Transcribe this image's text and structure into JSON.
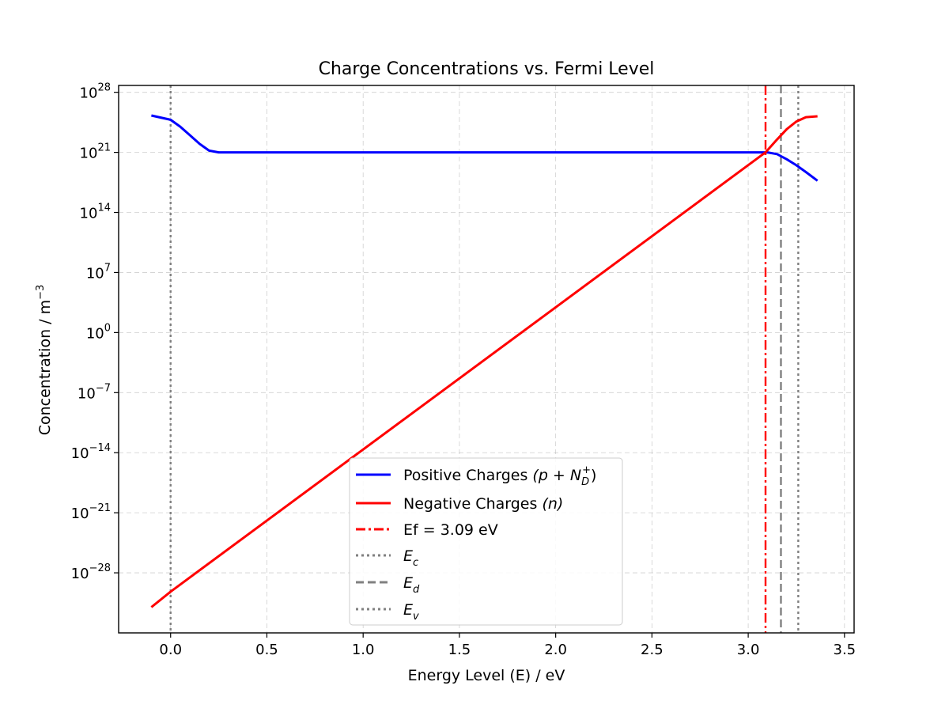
{
  "chart_data": {
    "type": "line",
    "title": "Charge Concentrations vs. Fermi Level",
    "xlabel": "Energy Level (E) / eV",
    "ylabel": "Concentration / m",
    "ylabel_superscript": "−3",
    "xlim": [
      -0.27,
      3.55
    ],
    "ylim_log10": [
      -35,
      28.8
    ],
    "yscale": "log",
    "grid": true,
    "legend_position": "lower-center",
    "x_ticks": [
      "0.0",
      "0.5",
      "1.0",
      "1.5",
      "2.0",
      "2.5",
      "3.0",
      "3.5"
    ],
    "x_tick_values": [
      0.0,
      0.5,
      1.0,
      1.5,
      2.0,
      2.5,
      3.0,
      3.5
    ],
    "y_ticks": [
      {
        "base": "10",
        "exp": "28",
        "value_log10": 28
      },
      {
        "base": "10",
        "exp": "21",
        "value_log10": 21
      },
      {
        "base": "10",
        "exp": "14",
        "value_log10": 14
      },
      {
        "base": "10",
        "exp": "7",
        "value_log10": 7
      },
      {
        "base": "10",
        "exp": "0",
        "value_log10": 0
      },
      {
        "base": "10",
        "exp": "−7",
        "value_log10": -7
      },
      {
        "base": "10",
        "exp": "−14",
        "value_log10": -14
      },
      {
        "base": "10",
        "exp": "−21",
        "value_log10": -21
      },
      {
        "base": "10",
        "exp": "−28",
        "value_log10": -28
      }
    ],
    "series": [
      {
        "name": "Positive Charges",
        "name_math": "(p + N_D^+)",
        "color": "#0000ff",
        "x": [
          -0.1,
          0.0,
          0.05,
          0.1,
          0.15,
          0.2,
          0.25,
          0.3,
          0.5,
          1.0,
          1.5,
          2.0,
          2.5,
          3.0,
          3.1,
          3.15,
          3.2,
          3.25,
          3.3,
          3.36
        ],
        "y_log10": [
          25.3,
          24.8,
          24.0,
          23.0,
          22.0,
          21.2,
          21.0,
          21.0,
          21.0,
          21.0,
          21.0,
          21.0,
          21.0,
          21.0,
          21.0,
          20.8,
          20.2,
          19.5,
          18.7,
          17.7
        ]
      },
      {
        "name": "Negative Charges",
        "name_math": "(n)",
        "color": "#ff0000",
        "x": [
          -0.1,
          0.0,
          3.09,
          3.15,
          3.2,
          3.25,
          3.3,
          3.36
        ],
        "y_log10": [
          -32.0,
          -30.2,
          21.0,
          22.5,
          23.7,
          24.6,
          25.1,
          25.2
        ]
      }
    ],
    "vlines": [
      {
        "name": "Ef = 3.09 eV",
        "x": 3.09,
        "color": "#ff0000",
        "style": "dashdot"
      },
      {
        "name": "E",
        "sub": "c",
        "x": 0.0,
        "color": "#808080",
        "style": "dotted"
      },
      {
        "name": "E",
        "sub": "d",
        "x": 3.17,
        "color": "#808080",
        "style": "dashed"
      },
      {
        "name": "E",
        "sub": "v",
        "x": 3.26,
        "color": "#808080",
        "style": "dotted"
      }
    ],
    "legend": [
      {
        "label": "Positive Charges ",
        "math": "(p + N",
        "sub": "D",
        "sup": "+",
        "close": ")",
        "color": "#0000ff",
        "style": "solid"
      },
      {
        "label": "Negative Charges ",
        "math": "(n)",
        "color": "#ff0000",
        "style": "solid"
      },
      {
        "label": "Ef = 3.09 eV",
        "color": "#ff0000",
        "style": "dashdot"
      },
      {
        "label": "E",
        "sub": "c",
        "color": "#808080",
        "style": "dotted"
      },
      {
        "label": "E",
        "sub": "d",
        "color": "#808080",
        "style": "dashed"
      },
      {
        "label": "E",
        "sub": "v",
        "color": "#808080",
        "style": "dotted"
      }
    ]
  }
}
